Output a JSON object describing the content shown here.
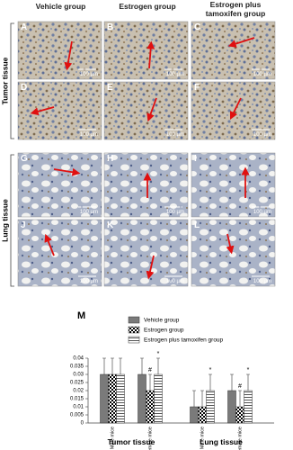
{
  "columns": [
    "Vehicle group",
    "Estrogen group",
    "Estrogen plus tamoxifen group"
  ],
  "rows": [
    "Tumor tissue",
    "Lung tissue"
  ],
  "panels": [
    {
      "letter": "A",
      "scale_bar": "100 µm"
    },
    {
      "letter": "B",
      "scale_bar": "100 µm"
    },
    {
      "letter": "C",
      "scale_bar": "100 µm"
    },
    {
      "letter": "D",
      "scale_bar": "100 µm"
    },
    {
      "letter": "E",
      "scale_bar": "100 µm"
    },
    {
      "letter": "F",
      "scale_bar": "100 µm"
    },
    {
      "letter": "G",
      "scale_bar": "100 µm"
    },
    {
      "letter": "H",
      "scale_bar": "100 µm"
    },
    {
      "letter": "I",
      "scale_bar": "100 µm"
    },
    {
      "letter": "J",
      "scale_bar": "100 µm"
    },
    {
      "letter": "K",
      "scale_bar": "100 µm"
    },
    {
      "letter": "L",
      "scale_bar": "100 µm"
    }
  ],
  "chart_data": {
    "type": "bar",
    "label": "M",
    "groups": [
      "Tumor tissue",
      "Lung tissue"
    ],
    "categories": [
      "Male mice",
      "Female mice",
      "Male mice",
      "Female mice"
    ],
    "series": [
      {
        "name": "Vehicle group",
        "color": "#7a7a7a",
        "pattern": "solid",
        "values": [
          0.03,
          0.03,
          0.01,
          0.02
        ],
        "errors": [
          0.01,
          0.01,
          0.01,
          0.01
        ],
        "markers": [
          null,
          null,
          null,
          null
        ]
      },
      {
        "name": "Estrogen group",
        "color": "#000000",
        "pattern": "checker",
        "values": [
          0.03,
          0.02,
          0.01,
          0.01
        ],
        "errors": [
          0.01,
          0.01,
          0.01,
          0.01
        ],
        "markers": [
          null,
          "#",
          null,
          "#"
        ]
      },
      {
        "name": "Estrogen plus tamoxifen group",
        "color": "#555555",
        "pattern": "hlines",
        "values": [
          0.03,
          0.03,
          0.02,
          0.02
        ],
        "errors": [
          0.01,
          0.01,
          0.01,
          0.01
        ],
        "markers": [
          null,
          "*",
          "*",
          "*"
        ]
      }
    ],
    "ylim": [
      0,
      0.04
    ],
    "yticks": [
      0,
      0.005,
      0.01,
      0.015,
      0.02,
      0.025,
      0.03,
      0.035,
      0.04
    ]
  }
}
